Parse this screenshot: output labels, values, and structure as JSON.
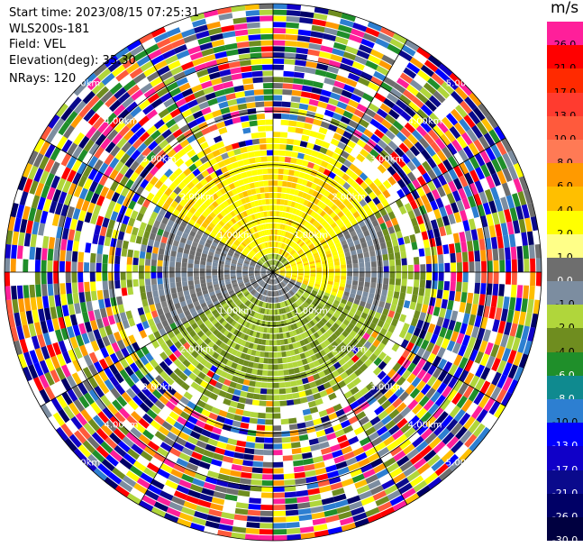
{
  "info": {
    "start_time": "Start time: 2023/08/15 07:25:31",
    "station": "WLS200s-181",
    "field": "Field: VEL",
    "elevation": "Elevation(deg): 35.30",
    "nrays": "NRays: 120"
  },
  "colorbar": {
    "unit": "m/s",
    "bins": [
      {
        "label": "26.0",
        "color": "#ff1f9a"
      },
      {
        "label": "21.0",
        "color": "#ff0000"
      },
      {
        "label": "17.0",
        "color": "#ff2a00"
      },
      {
        "label": "13.0",
        "color": "#ff3b2f"
      },
      {
        "label": "10.0",
        "color": "#ff5a3c"
      },
      {
        "label": "8.0",
        "color": "#ff7a55"
      },
      {
        "label": "6.0",
        "color": "#ff9a00"
      },
      {
        "label": "4.0",
        "color": "#ffbf00"
      },
      {
        "label": "2.0",
        "color": "#ffff00"
      },
      {
        "label": "1.0",
        "color": "#ffff88"
      },
      {
        "label": "0.0",
        "color": "#6e6e6e"
      },
      {
        "label": "-1.0",
        "color": "#7c8da0"
      },
      {
        "label": "-2.0",
        "color": "#b0d63b"
      },
      {
        "label": "-4.0",
        "color": "#6f8d1f"
      },
      {
        "label": "-6.0",
        "color": "#1f8f2a"
      },
      {
        "label": "-8.0",
        "color": "#0f8a8f"
      },
      {
        "label": "-10.0",
        "color": "#2d7fd1"
      },
      {
        "label": "-13.0",
        "color": "#0000ff"
      },
      {
        "label": "-17.0",
        "color": "#1000c8"
      },
      {
        "label": "-21.0",
        "color": "#0a0a8c"
      },
      {
        "label": "-26.0",
        "color": "#000066"
      },
      {
        "label": "-30.0",
        "color": "#000040"
      }
    ]
  },
  "chart_data": {
    "type": "heatmap",
    "title": "",
    "field": "VEL",
    "unit": "m/s",
    "nrays": 120,
    "elevation_deg": 35.3,
    "range_rings_km": [
      1.0,
      2.0,
      3.0,
      4.0,
      5.0
    ],
    "ring_labels": [
      "1.00km",
      "2.00km",
      "3.00km",
      "4.00km",
      "5.00km"
    ],
    "spokes_deg": [
      0,
      30,
      60,
      90,
      120,
      150,
      180,
      210,
      240,
      270,
      300,
      330
    ],
    "max_range_km": 5.0,
    "pattern": [
      {
        "region": "north, 0.5-2.8 km",
        "velocity": "2.0 to 4.0"
      },
      {
        "region": "west, 0.3-1.5 km",
        "velocity": "0.0 to -1.0"
      },
      {
        "region": "south, 0.3-2.8 km",
        "velocity": "-2.0 to -4.0"
      },
      {
        "region": "beyond 2.8 km",
        "velocity": "noise, full range"
      }
    ]
  }
}
